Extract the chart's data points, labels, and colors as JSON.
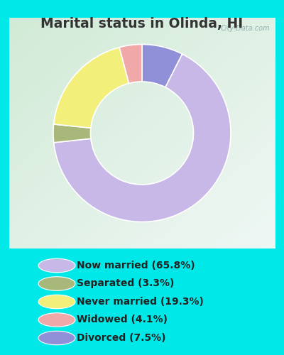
{
  "title": "Marital status in Olinda, HI",
  "slices": [
    65.8,
    3.3,
    19.3,
    4.1,
    7.5
  ],
  "labels": [
    "Now married (65.8%)",
    "Separated (3.3%)",
    "Never married (19.3%)",
    "Widowed (4.1%)",
    "Divorced (7.5%)"
  ],
  "colors": [
    "#c8b8e8",
    "#a8b87a",
    "#f2f07a",
    "#f0a8a8",
    "#9090d8"
  ],
  "bg_outer": "#00e8e8",
  "bg_inner_top_left": "#c8e8d0",
  "bg_inner_bottom_right": "#e8f0e0",
  "watermark": "City-Data.com",
  "title_color": "#333333",
  "title_fontsize": 13.5,
  "legend_fontsize": 10,
  "donut_width": 0.42,
  "chart_box_color": "#d8ecdc"
}
